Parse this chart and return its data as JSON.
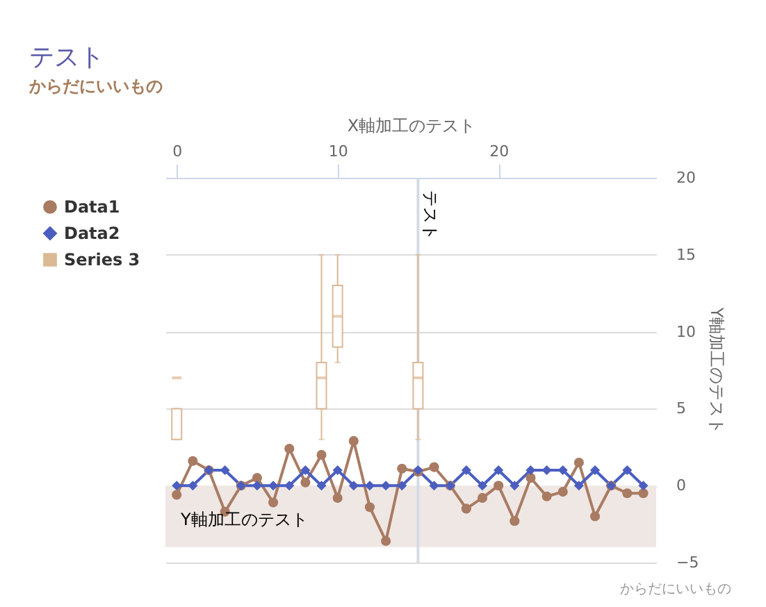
{
  "chart_data": {
    "type": "line",
    "title": "テスト",
    "subtitle": "からだにいいもの",
    "xlabel": "X軸加工のテスト",
    "ylabel": "Y軸加工のテスト",
    "x": [
      0,
      1,
      2,
      3,
      4,
      5,
      6,
      7,
      8,
      9,
      10,
      11,
      12,
      13,
      14,
      15,
      16,
      17,
      18,
      19,
      20,
      21,
      22,
      23,
      24,
      25,
      26,
      27,
      28,
      29
    ],
    "series": [
      {
        "name": "Data1",
        "color": "#a97b63",
        "marker": "circle",
        "values": [
          -0.6,
          1.6,
          1,
          -1.7,
          0,
          0.5,
          -1.1,
          2.4,
          0.2,
          2,
          -0.8,
          2.9,
          -1.4,
          -3.6,
          1.1,
          0.9,
          1.2,
          0,
          -1.5,
          -0.8,
          0,
          -2.3,
          0.5,
          -0.7,
          -0.4,
          1.5,
          -2,
          0,
          -0.5,
          -0.5
        ]
      },
      {
        "name": "Data2",
        "color": "#4b5ec0",
        "marker": "diamond",
        "values": [
          0,
          0,
          1,
          1,
          0,
          0,
          0,
          0,
          1,
          0,
          1,
          0,
          0,
          0,
          0,
          1,
          0,
          0,
          1,
          0,
          1,
          0,
          1,
          1,
          1,
          0,
          1,
          0,
          1,
          0
        ]
      },
      {
        "name": "Series 3",
        "type": "box",
        "color": "#dbb995",
        "x": [
          0,
          9,
          10,
          15
        ],
        "boxes": [
          {
            "low": 3,
            "q1": 3,
            "median": 7,
            "q3": 5,
            "high": 5
          },
          {
            "low": 3,
            "q1": 5,
            "median": 7,
            "q3": 8,
            "high": 15
          },
          {
            "low": 8,
            "q1": 9,
            "median": 11,
            "q3": 13,
            "high": 15
          },
          {
            "low": 3,
            "q1": 5,
            "median": 7,
            "q3": 8,
            "high": 15
          }
        ]
      }
    ],
    "xlim": [
      -0.7,
      29.8
    ],
    "xticks": [
      0,
      10,
      20
    ],
    "ylim": [
      -5,
      20
    ],
    "yticks": [
      -5,
      0,
      5,
      10,
      15,
      20
    ],
    "ref_lines": [
      {
        "axis": "x",
        "value": 15,
        "label": "テスト",
        "color": "#d4dbe6"
      }
    ],
    "bands": [
      {
        "axis": "y",
        "from": 0,
        "to": -4,
        "label": "Y軸加工のテスト",
        "color": "#efe7e3"
      }
    ],
    "annotations": [
      "からだにいいもの"
    ],
    "grid": "y",
    "legend": "left",
    "line_style": "solid"
  }
}
